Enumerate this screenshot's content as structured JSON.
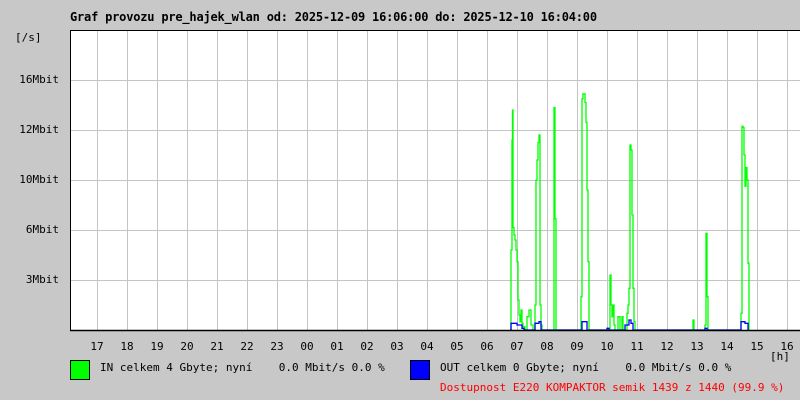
{
  "chart_data": {
    "type": "line",
    "title": "Graf provozu pre_hajek_wlan od: 2025-12-09 16:06:00 do: 2025-12-10 16:04:00",
    "ylabel": "[/s]",
    "xlabel": "[h]",
    "x_start": "2025-12-09 16:06",
    "x_end": "2025-12-10 16:06",
    "x_ticks": [
      "17",
      "18",
      "19",
      "20",
      "21",
      "22",
      "23",
      "00",
      "01",
      "02",
      "03",
      "04",
      "05",
      "06",
      "07",
      "08",
      "09",
      "10",
      "11",
      "12",
      "13",
      "14",
      "15",
      "16"
    ],
    "y_ticks": [
      {
        "label": "3Mbit",
        "value": 3
      },
      {
        "label": "6Mbit",
        "value": 6
      },
      {
        "label": "10Mbit",
        "value": 10
      },
      {
        "label": "12Mbit",
        "value": 12
      },
      {
        "label": "16Mbit",
        "value": 16
      }
    ],
    "grid": true,
    "series": [
      {
        "name": "IN",
        "color": "#00ff00",
        "points": [
          [
            "06:46",
            0
          ],
          [
            "06:48",
            4.8
          ],
          [
            "06:50",
            11.6
          ],
          [
            "06:51",
            13.6
          ],
          [
            "06:52",
            6.2
          ],
          [
            "06:54",
            5.7
          ],
          [
            "06:56",
            5.4
          ],
          [
            "06:58",
            4.8
          ],
          [
            "07:00",
            4.1
          ],
          [
            "07:02",
            1.8
          ],
          [
            "07:04",
            0.9
          ],
          [
            "07:06",
            0.5
          ],
          [
            "07:08",
            1.2
          ],
          [
            "07:10",
            0.4
          ],
          [
            "07:12",
            0.2
          ],
          [
            "07:16",
            0
          ],
          [
            "07:20",
            0.8
          ],
          [
            "07:24",
            1.2
          ],
          [
            "07:28",
            0.3
          ],
          [
            "07:32",
            0
          ],
          [
            "07:36",
            1.5
          ],
          [
            "07:38",
            10.0
          ],
          [
            "07:40",
            10.8
          ],
          [
            "07:42",
            11.5
          ],
          [
            "07:44",
            11.8
          ],
          [
            "07:46",
            1.5
          ],
          [
            "07:48",
            0.3
          ],
          [
            "07:50",
            0
          ],
          [
            "08:12",
            0
          ],
          [
            "08:14",
            13.8
          ],
          [
            "08:16",
            6.9
          ],
          [
            "08:18",
            0
          ],
          [
            "09:06",
            0
          ],
          [
            "09:08",
            2.0
          ],
          [
            "09:10",
            14.5
          ],
          [
            "09:12",
            14.9
          ],
          [
            "09:14",
            14.9
          ],
          [
            "09:16",
            14.2
          ],
          [
            "09:18",
            12.6
          ],
          [
            "09:20",
            9.2
          ],
          [
            "09:22",
            4.1
          ],
          [
            "09:24",
            0
          ],
          [
            "10:04",
            0
          ],
          [
            "10:06",
            3.3
          ],
          [
            "10:08",
            1.5
          ],
          [
            "10:10",
            0.8
          ],
          [
            "10:12",
            1.5
          ],
          [
            "10:14",
            0.3
          ],
          [
            "10:16",
            0
          ],
          [
            "10:22",
            0.8
          ],
          [
            "10:26",
            0
          ],
          [
            "10:30",
            0.8
          ],
          [
            "10:32",
            0
          ],
          [
            "10:38",
            0
          ],
          [
            "10:40",
            1.0
          ],
          [
            "10:42",
            1.5
          ],
          [
            "10:44",
            2.5
          ],
          [
            "10:46",
            11.4
          ],
          [
            "10:48",
            11.2
          ],
          [
            "10:50",
            7.2
          ],
          [
            "10:52",
            2.5
          ],
          [
            "10:54",
            0.5
          ],
          [
            "10:56",
            0
          ],
          [
            "12:50",
            0
          ],
          [
            "12:52",
            0.6
          ],
          [
            "12:54",
            0
          ],
          [
            "13:14",
            0
          ],
          [
            "13:16",
            0.3
          ],
          [
            "13:18",
            5.8
          ],
          [
            "13:20",
            2.0
          ],
          [
            "13:22",
            0
          ],
          [
            "14:26",
            0
          ],
          [
            "14:28",
            1.0
          ],
          [
            "14:30",
            12.3
          ],
          [
            "14:32",
            12.2
          ],
          [
            "14:34",
            11.0
          ],
          [
            "14:36",
            9.5
          ],
          [
            "14:38",
            10.5
          ],
          [
            "14:40",
            10.0
          ],
          [
            "14:42",
            4.0
          ],
          [
            "14:44",
            0
          ]
        ]
      },
      {
        "name": "OUT",
        "color": "#0000ff",
        "points": [
          [
            "06:46",
            0
          ],
          [
            "06:48",
            0.4
          ],
          [
            "07:00",
            0.3
          ],
          [
            "07:10",
            0.1
          ],
          [
            "07:14",
            0
          ],
          [
            "07:36",
            0.4
          ],
          [
            "07:44",
            0.5
          ],
          [
            "07:48",
            0
          ],
          [
            "09:08",
            0
          ],
          [
            "09:10",
            0.5
          ],
          [
            "09:16",
            0.5
          ],
          [
            "09:20",
            0
          ],
          [
            "10:00",
            0.1
          ],
          [
            "10:04",
            0
          ],
          [
            "10:36",
            0.3
          ],
          [
            "10:44",
            0.6
          ],
          [
            "10:48",
            0.4
          ],
          [
            "10:52",
            0
          ],
          [
            "13:14",
            0
          ],
          [
            "13:16",
            0.1
          ],
          [
            "13:20",
            0
          ],
          [
            "14:26",
            0
          ],
          [
            "14:28",
            0.5
          ],
          [
            "14:36",
            0.4
          ],
          [
            "14:42",
            0
          ]
        ]
      }
    ]
  },
  "legend": {
    "in": {
      "text": "IN celkem 4 Gbyte; nyní    0.0 Mbit/s 0.0 %",
      "color": "#00ff00"
    },
    "out": {
      "text": "OUT celkem 0 Gbyte; nyní    0.0 Mbit/s 0.0 %",
      "color": "#0000ff"
    },
    "availability": {
      "text": "Dostupnost E220 KOMPAKTOR semik 1439 z 1440 (99.9 %)",
      "color": "#ff0000"
    }
  }
}
